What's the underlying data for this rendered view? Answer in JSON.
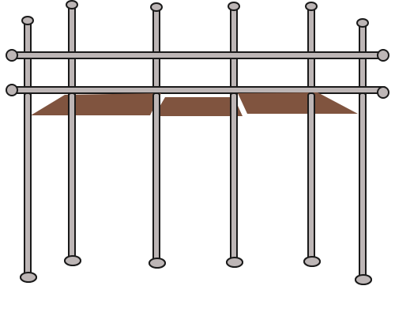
{
  "scene": {
    "title": "",
    "colors": {
      "pole": "#bdb6b6",
      "outline": "#1a1a1a",
      "plank": "#80543f",
      "background": "#ffffff"
    }
  }
}
